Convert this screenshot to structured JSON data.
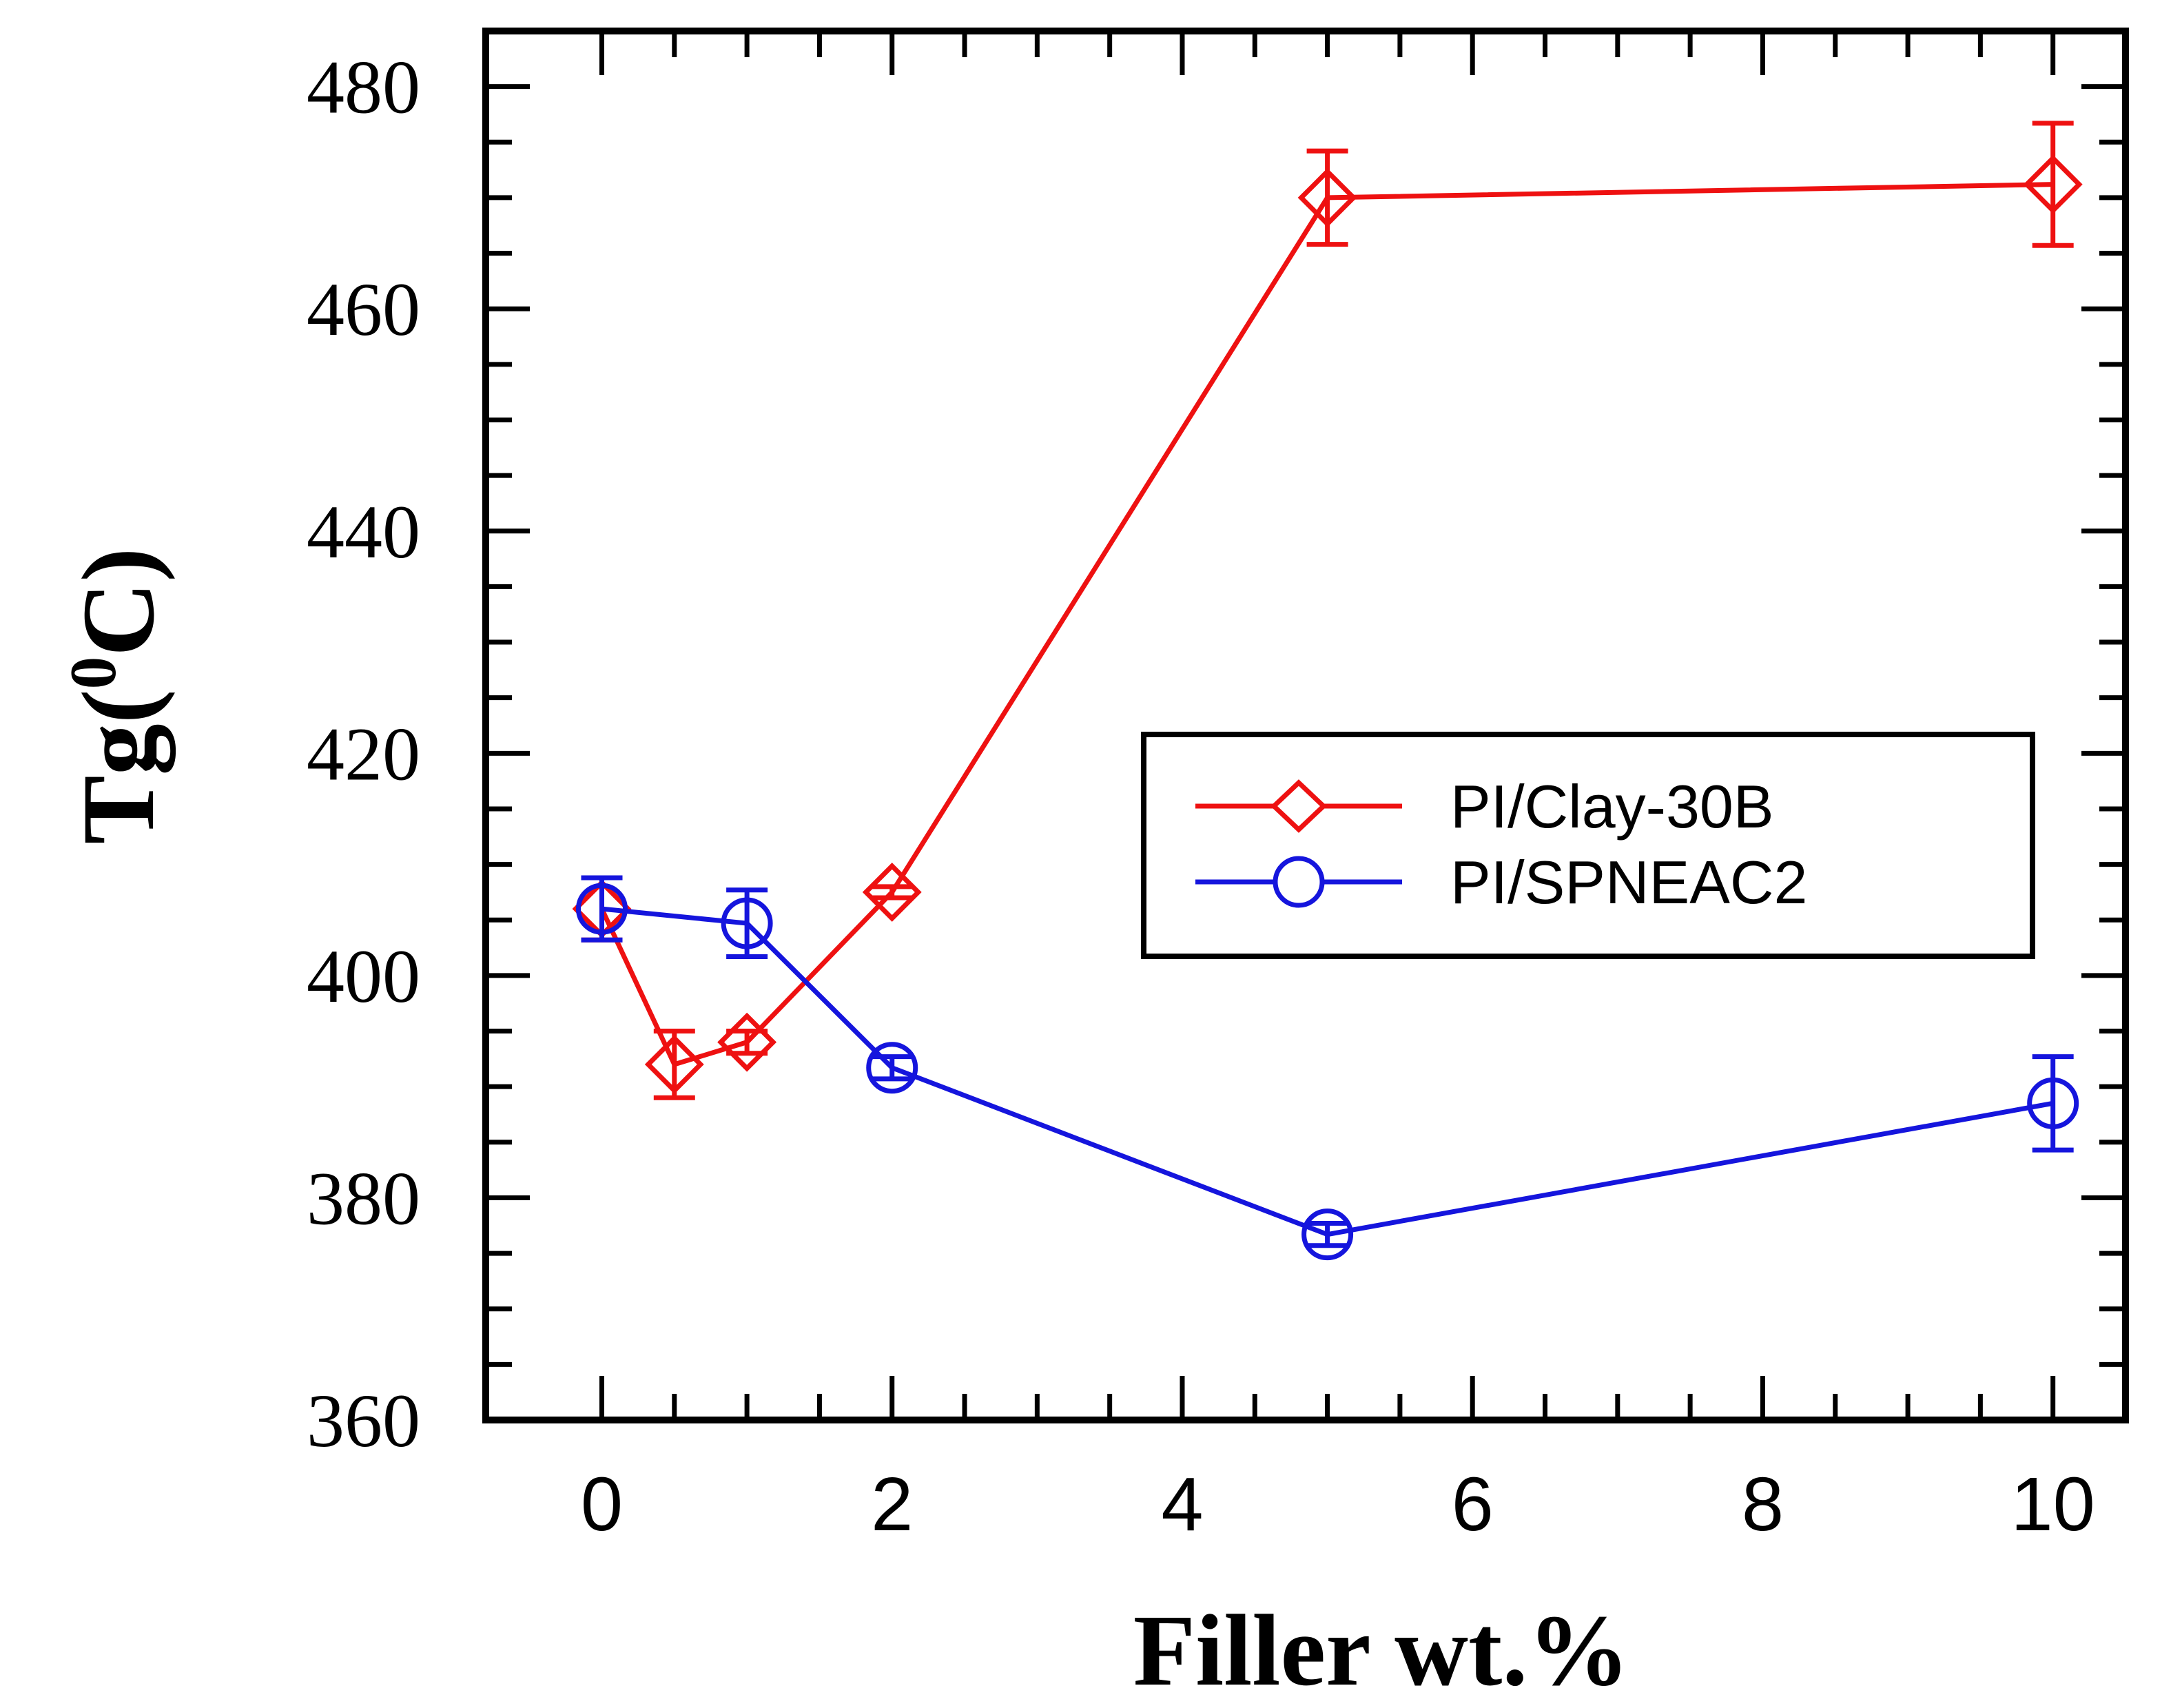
{
  "chart_data": {
    "type": "line",
    "title": "",
    "xlabel": "Filler wt.%",
    "ylabel_main": "Tg(",
    "ylabel_sup": "0",
    "ylabel_end": "C)",
    "xlim": [
      -0.8,
      10.5
    ],
    "ylim": [
      360,
      485
    ],
    "xticks_major": [
      0,
      2,
      4,
      6,
      8,
      10
    ],
    "xtick_labels": [
      "0",
      "2",
      "4",
      "6",
      "8",
      "10"
    ],
    "xticks_minor": [
      0,
      0.5,
      1,
      1.5,
      2,
      2.5,
      3,
      3.5,
      4,
      4.5,
      5,
      5.5,
      6,
      6.5,
      7,
      7.5,
      8,
      8.5,
      9,
      9.5,
      10
    ],
    "yticks_major": [
      360,
      380,
      400,
      420,
      440,
      460,
      480
    ],
    "ytick_labels": [
      "360",
      "380",
      "400",
      "420",
      "440",
      "460",
      "480"
    ],
    "yticks_minor": [
      360,
      365,
      370,
      375,
      380,
      385,
      390,
      395,
      400,
      405,
      410,
      415,
      420,
      425,
      430,
      435,
      440,
      445,
      450,
      455,
      460,
      465,
      470,
      475,
      480
    ],
    "legend_position": "center-right",
    "series": [
      {
        "name": "PI/Clay-30B",
        "color": "#ee1111",
        "marker": "diamond",
        "x": [
          0,
          0.5,
          1,
          2,
          5,
          10
        ],
        "y": [
          406,
          392,
          394,
          407.5,
          470,
          471.2
        ],
        "yerr": [
          2.8,
          3,
          1,
          0.5,
          4.2,
          5.5
        ]
      },
      {
        "name": "PI/SPNEAC2",
        "color": "#1515dd",
        "marker": "circle",
        "x": [
          0,
          1,
          2,
          5,
          10
        ],
        "y": [
          406,
          404.7,
          391.7,
          376.7,
          388.5
        ],
        "yerr": [
          2.8,
          3,
          1,
          1,
          4.2
        ]
      }
    ]
  }
}
